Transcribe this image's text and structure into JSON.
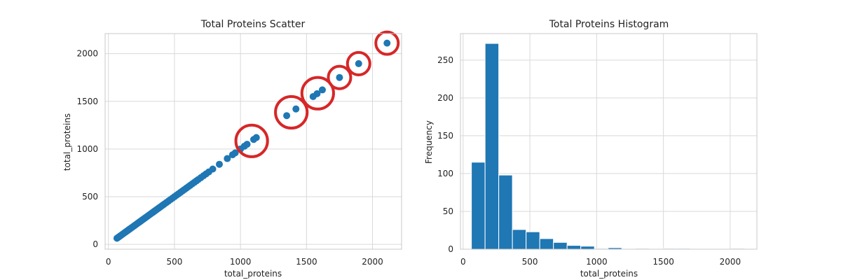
{
  "colors": {
    "series": "#1f77b4",
    "highlight": "#d62728",
    "grid": "#d9d9d9",
    "frame": "#c8c8c8"
  },
  "chart_data": [
    {
      "type": "scatter",
      "title": "Total Proteins Scatter",
      "xlabel": "total_proteins",
      "ylabel": "total_proteins",
      "xlim": [
        -25,
        2220
      ],
      "ylim": [
        -50,
        2210
      ],
      "xticks": [
        "0",
        "500",
        "1000",
        "1500",
        "2000"
      ],
      "yticks": [
        "0",
        "500",
        "1000",
        "1500",
        "2000"
      ],
      "grid": true,
      "points": [
        [
          65,
          65
        ],
        [
          75,
          75
        ],
        [
          85,
          85
        ],
        [
          95,
          95
        ],
        [
          105,
          105
        ],
        [
          115,
          115
        ],
        [
          125,
          125
        ],
        [
          135,
          135
        ],
        [
          145,
          145
        ],
        [
          155,
          155
        ],
        [
          165,
          165
        ],
        [
          175,
          175
        ],
        [
          185,
          185
        ],
        [
          195,
          195
        ],
        [
          205,
          205
        ],
        [
          215,
          215
        ],
        [
          225,
          225
        ],
        [
          235,
          235
        ],
        [
          245,
          245
        ],
        [
          255,
          255
        ],
        [
          265,
          265
        ],
        [
          275,
          275
        ],
        [
          285,
          285
        ],
        [
          295,
          295
        ],
        [
          305,
          305
        ],
        [
          315,
          315
        ],
        [
          325,
          325
        ],
        [
          335,
          335
        ],
        [
          345,
          345
        ],
        [
          355,
          355
        ],
        [
          365,
          365
        ],
        [
          375,
          375
        ],
        [
          385,
          385
        ],
        [
          395,
          395
        ],
        [
          405,
          405
        ],
        [
          415,
          415
        ],
        [
          425,
          425
        ],
        [
          440,
          440
        ],
        [
          455,
          455
        ],
        [
          470,
          470
        ],
        [
          485,
          485
        ],
        [
          500,
          500
        ],
        [
          515,
          515
        ],
        [
          530,
          530
        ],
        [
          545,
          545
        ],
        [
          560,
          560
        ],
        [
          575,
          575
        ],
        [
          590,
          590
        ],
        [
          605,
          605
        ],
        [
          620,
          620
        ],
        [
          635,
          635
        ],
        [
          650,
          650
        ],
        [
          665,
          665
        ],
        [
          680,
          680
        ],
        [
          700,
          700
        ],
        [
          720,
          720
        ],
        [
          740,
          740
        ],
        [
          760,
          760
        ],
        [
          790,
          790
        ],
        [
          840,
          840
        ],
        [
          900,
          900
        ],
        [
          940,
          940
        ],
        [
          960,
          960
        ],
        [
          1000,
          1000
        ],
        [
          1030,
          1030
        ],
        [
          1050,
          1050
        ],
        [
          1100,
          1100
        ],
        [
          1120,
          1120
        ],
        [
          1350,
          1350
        ],
        [
          1420,
          1420
        ],
        [
          1550,
          1550
        ],
        [
          1580,
          1580
        ],
        [
          1620,
          1620
        ],
        [
          1750,
          1750
        ],
        [
          1895,
          1895
        ],
        [
          2110,
          2110
        ]
      ],
      "highlight_circles": [
        {
          "x": 1085,
          "y": 1085,
          "r_data": 120
        },
        {
          "x": 1385,
          "y": 1385,
          "r_data": 120
        },
        {
          "x": 1585,
          "y": 1585,
          "r_data": 120
        },
        {
          "x": 1750,
          "y": 1750,
          "r_data": 85
        },
        {
          "x": 1895,
          "y": 1895,
          "r_data": 85
        },
        {
          "x": 2110,
          "y": 2110,
          "r_data": 85
        }
      ]
    },
    {
      "type": "bar",
      "title": "Total Proteins  Histogram",
      "xlabel": "total_proteins",
      "ylabel": "Frequency",
      "xlim": [
        -20,
        2200
      ],
      "ylim": [
        0,
        285
      ],
      "xticks": [
        "0",
        "500",
        "1000",
        "1500",
        "2000"
      ],
      "yticks": [
        "0",
        "50",
        "100",
        "150",
        "200",
        "250"
      ],
      "grid": true,
      "bin_edges": [
        62,
        164.4,
        266.8,
        369.2,
        471.6,
        574,
        676.4,
        778.8,
        881.2,
        983.6,
        1086,
        1188.4,
        1290.8,
        1393.2,
        1495.6,
        1598,
        1700.4,
        1802.8,
        1905.2,
        2007.6,
        2110
      ],
      "counts": [
        115,
        272,
        98,
        26,
        23,
        14,
        9,
        5,
        4,
        1,
        2,
        0,
        1,
        0,
        1,
        1,
        0,
        0,
        0,
        1
      ]
    }
  ]
}
